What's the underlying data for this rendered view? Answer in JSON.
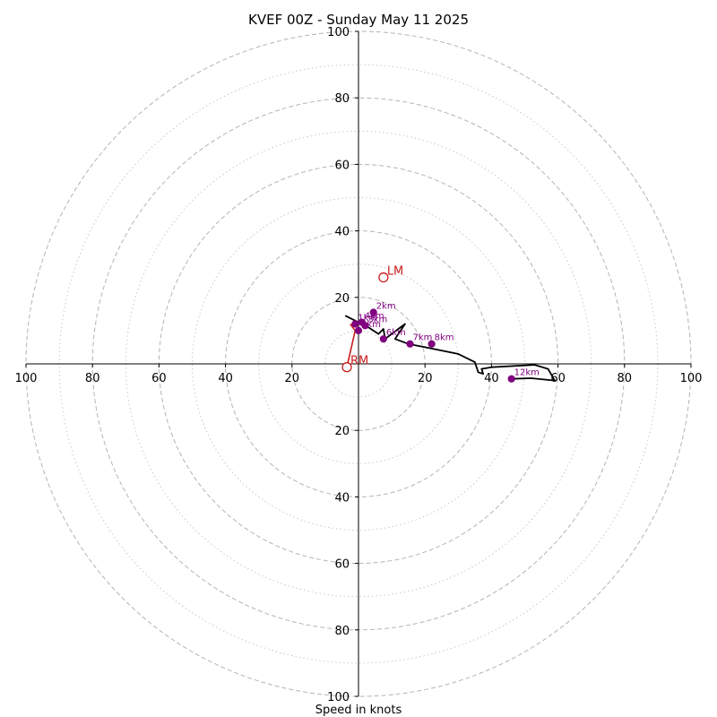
{
  "chart_data": {
    "type": "line",
    "title": "KVEF 00Z - Sunday May 11 2025",
    "xlabel": "Speed in knots",
    "ylabel": "",
    "xlim": [
      -100,
      100
    ],
    "ylim": [
      -100,
      100
    ],
    "rings_major": [
      20,
      40,
      60,
      80,
      100
    ],
    "rings_minor": [
      10,
      30,
      50,
      70,
      90
    ],
    "ticks": {
      "right": [
        "20",
        "40",
        "60",
        "80",
        "100"
      ],
      "left": [
        "20",
        "40",
        "60",
        "80",
        "100"
      ],
      "top": [
        "20",
        "40",
        "60",
        "80",
        "100"
      ],
      "bottom": [
        "20",
        "40",
        "60",
        "80",
        "100"
      ]
    },
    "tick_values": [
      20,
      40,
      60,
      80,
      100
    ],
    "hodograph": {
      "color": "#000000",
      "points": [
        [
          -4,
          14.5
        ],
        [
          3,
          11
        ],
        [
          6,
          9
        ],
        [
          7.5,
          10.5
        ],
        [
          8,
          7.5
        ],
        [
          12,
          10.5
        ],
        [
          14,
          12
        ],
        [
          12,
          9
        ],
        [
          11,
          7.5
        ],
        [
          15,
          6
        ],
        [
          20,
          5
        ],
        [
          24,
          4.2
        ],
        [
          30,
          3
        ],
        [
          35,
          0.5
        ],
        [
          36,
          -2.5
        ],
        [
          37.5,
          -3
        ],
        [
          37,
          -1.5
        ],
        [
          40,
          -1
        ],
        [
          53,
          -0.3
        ],
        [
          57,
          -1.5
        ],
        [
          59,
          -5
        ],
        [
          52,
          -4.3
        ],
        [
          46,
          -4.5
        ]
      ]
    },
    "height_markers": [
      {
        "label": "1km",
        "x": -1,
        "y": 12
      },
      {
        "label": "2km",
        "x": 4.5,
        "y": 15.5
      },
      {
        "label": "3km",
        "x": 2,
        "y": 11.5
      },
      {
        "label": "4km",
        "x": 1,
        "y": 12.5
      },
      {
        "label": "5km",
        "x": 0,
        "y": 10
      },
      {
        "label": "6km",
        "x": 7.5,
        "y": 7.5
      },
      {
        "label": "7km",
        "x": 15.5,
        "y": 6
      },
      {
        "label": "8km",
        "x": 22,
        "y": 6
      },
      {
        "label": "12km",
        "x": 46,
        "y": -4.5
      }
    ],
    "storm_motion": {
      "color": "#c81e1e",
      "path": [
        [
          -3.5,
          -1
        ],
        [
          -1,
          10
        ],
        [
          -2.5,
          12
        ]
      ],
      "markers": [
        {
          "label": "LM",
          "x": 7.5,
          "y": 26
        },
        {
          "label": "RM",
          "x": -3.5,
          "y": -1
        }
      ]
    }
  }
}
